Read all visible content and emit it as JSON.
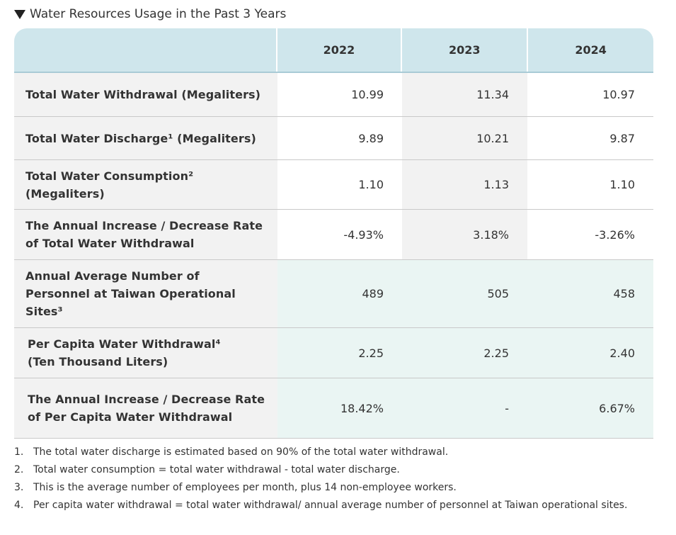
{
  "section_title": "Water Resources Usage in the Past 3 Years",
  "columns": [
    "",
    "2022",
    "2023",
    "2024"
  ],
  "rows": [
    {
      "label_lines": [
        "Total Water Withdrawal (Megaliters)"
      ],
      "values": [
        "10.99",
        "11.34",
        "10.97"
      ]
    },
    {
      "label_lines": [
        "Total Water Discharge¹ (Megaliters)"
      ],
      "values": [
        "9.89",
        "10.21",
        "9.87"
      ]
    },
    {
      "label_lines": [
        "Total Water Consumption²",
        "(Megaliters)"
      ],
      "values": [
        "1.10",
        "1.13",
        "1.10"
      ]
    },
    {
      "label_lines": [
        "The Annual Increase / Decrease Rate",
        "of Total Water Withdrawal"
      ],
      "values": [
        "-4.93%",
        "3.18%",
        "-3.26%"
      ]
    },
    {
      "label_lines": [
        "Annual Average Number of",
        "Personnel at Taiwan Operational",
        "Sites³"
      ],
      "values": [
        "489",
        "505",
        "458"
      ]
    },
    {
      "label_lines": [
        "Per Capita Water Withdrawal⁴",
        "(Ten Thousand Liters)"
      ],
      "values": [
        "2.25",
        "2.25",
        "2.40"
      ]
    },
    {
      "label_lines": [
        "The Annual Increase / Decrease Rate",
        "of Per Capita Water Withdrawal"
      ],
      "values": [
        "18.42%",
        "-",
        "6.67%"
      ]
    }
  ],
  "footnotes": [
    {
      "num": "1.",
      "text": "The total water discharge is estimated based on 90% of the total water withdrawal."
    },
    {
      "num": "2.",
      "text": "Total water consumption = total water withdrawal - total water discharge."
    },
    {
      "num": "3.",
      "text": "This is the average number of employees per month, plus 14 non-employee workers."
    },
    {
      "num": "4.",
      "text": "Per capita water withdrawal = total water withdrawal/ annual average number of personnel at Taiwan operational sites."
    }
  ],
  "colors": {
    "header_bg": "#cfe6ec",
    "label_bg": "#f2f2f2",
    "teal_cell_bg": "#eaf5f3"
  }
}
